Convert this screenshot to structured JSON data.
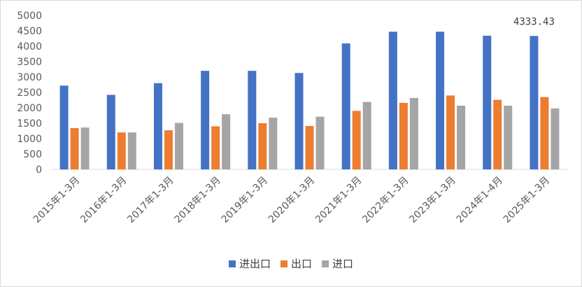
{
  "chart_data": {
    "type": "bar",
    "categories": [
      "2015年1-3月",
      "2016年1-3月",
      "2017年1-3月",
      "2018年1-3月",
      "2019年1-3月",
      "2020年1-3月",
      "2021年1-3月",
      "2022年1-3月",
      "2023年1-3月",
      "2024年1-4月",
      "2025年1-3月"
    ],
    "series": [
      {
        "name": "进出口",
        "color": "#4472c4",
        "values": [
          2720,
          2420,
          2800,
          3200,
          3200,
          3130,
          4090,
          4470,
          4470,
          4340,
          4333.43
        ]
      },
      {
        "name": "出口",
        "color": "#ed7d31",
        "values": [
          1340,
          1200,
          1270,
          1400,
          1500,
          1410,
          1900,
          2160,
          2400,
          2260,
          2350
        ]
      },
      {
        "name": "进口",
        "color": "#a5a5a5",
        "values": [
          1360,
          1200,
          1510,
          1790,
          1680,
          1710,
          2190,
          2320,
          2070,
          2070,
          1980
        ]
      }
    ],
    "data_labels": [
      {
        "series": 0,
        "index": 10,
        "text": "4333.43"
      }
    ],
    "yticks": [
      "0",
      "500",
      "1000",
      "1500",
      "2000",
      "2500",
      "3000",
      "3500",
      "4000",
      "4500",
      "5000"
    ],
    "ylim": [
      0,
      5000
    ],
    "xlabel": "",
    "ylabel": "",
    "grid": false,
    "legend_position": "bottom"
  }
}
